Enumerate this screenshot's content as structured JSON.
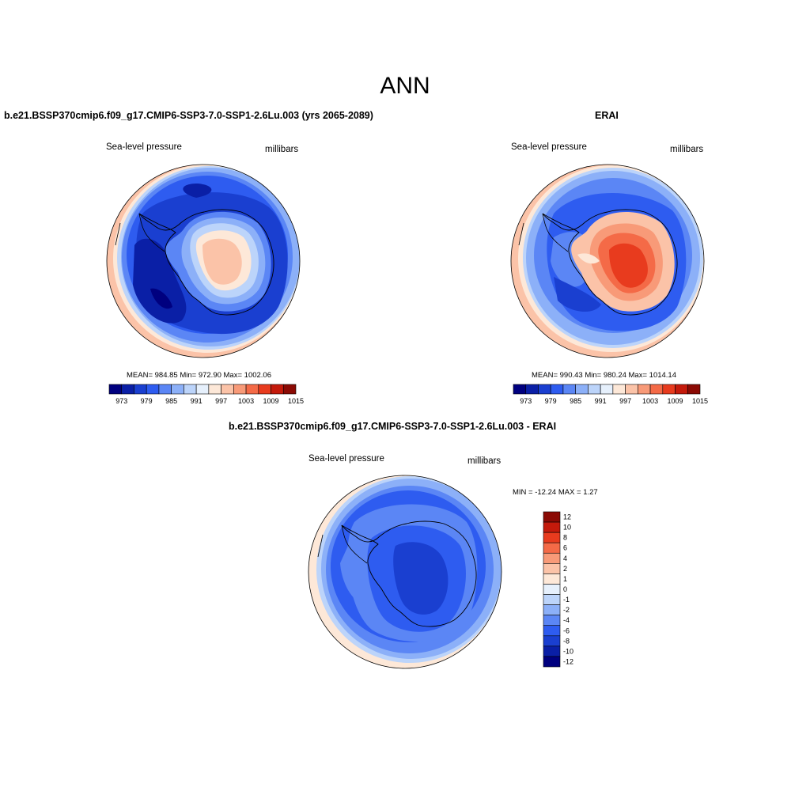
{
  "title": "ANN",
  "panels": [
    {
      "title": "b.e21.BSSP370cmip6.f09_g17.CMIP6-SSP3-7.0-SSP1-2.6Lu.003 (yrs 2065-2089)",
      "variable": "Sea-level pressure",
      "units": "millibars",
      "stats": "MEAN= 984.85  Min= 972.90  Max= 1002.06"
    },
    {
      "title": "ERAI",
      "variable": "Sea-level pressure",
      "units": "millibars",
      "stats": "MEAN= 990.43  Min= 980.24  Max= 1014.14"
    },
    {
      "title": "b.e21.BSSP370cmip6.f09_g17.CMIP6-SSP3-7.0-SSP1-2.6Lu.003 - ERAI",
      "variable": "Sea-level pressure",
      "units": "millibars",
      "stats": "MIN = -12.24 MAX =   1.27"
    }
  ],
  "colorbar_abs": {
    "colors": [
      "#00007f",
      "#0a1fa6",
      "#1a3fd0",
      "#2e5cf0",
      "#5b86f5",
      "#8cb0f8",
      "#bcd4fa",
      "#e6f0fc",
      "#fde8d8",
      "#fbc3a8",
      "#f89a78",
      "#f46a47",
      "#e83b1e",
      "#c41a0b",
      "#8b0a04"
    ],
    "labels": [
      "973",
      "979",
      "985",
      "991",
      "997",
      "1003",
      "1009",
      "1015"
    ]
  },
  "colorbar_diff": {
    "colors": [
      "#8b0a04",
      "#c41a0b",
      "#e83b1e",
      "#f46a47",
      "#f89a78",
      "#fbc3a8",
      "#fde8d8",
      "#e6f0fc",
      "#bcd4fa",
      "#8cb0f8",
      "#5b86f5",
      "#2e5cf0",
      "#1a3fd0",
      "#0a1fa6",
      "#00007f"
    ],
    "labels": [
      "12",
      "10",
      "8",
      "6",
      "4",
      "2",
      "1",
      "0",
      "-1",
      "-2",
      "-4",
      "-6",
      "-8",
      "-10",
      "-12"
    ]
  }
}
